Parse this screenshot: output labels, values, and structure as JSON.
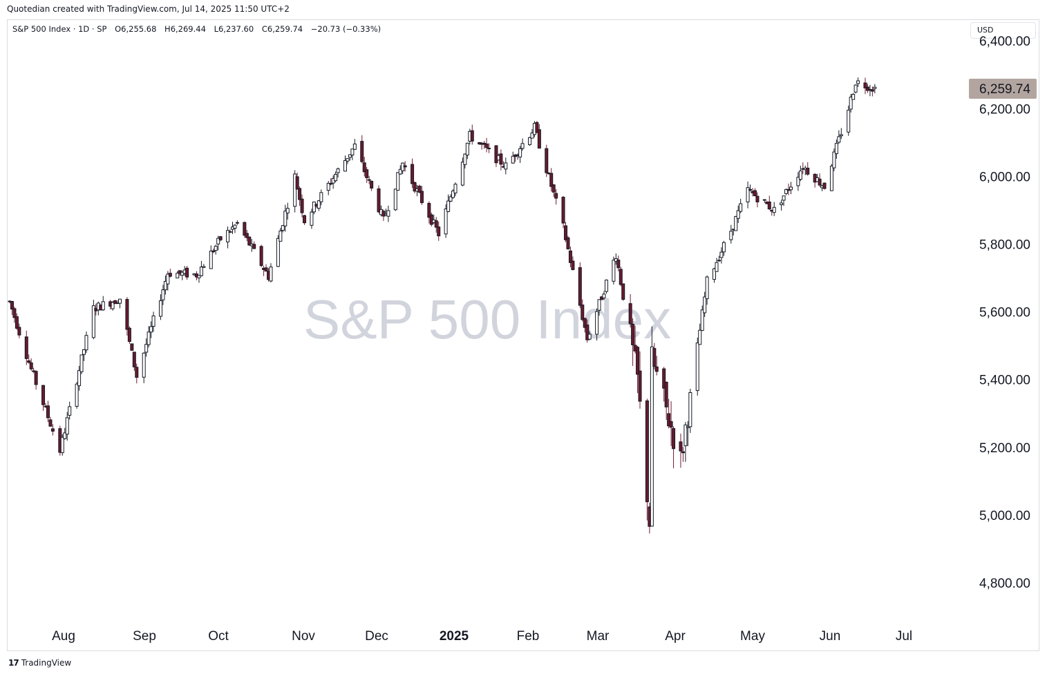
{
  "header": {
    "attribution": "Quotedian created with TradingView.com, Jul 14, 2025 11:50 UTC+2"
  },
  "legend": {
    "symbol": "S&P 500 Index · 1D · SP",
    "open": "O6,255.68",
    "high": "H6,269.44",
    "low": "L6,237.60",
    "close": "C6,259.74",
    "change": "−20.73 (−0.33%)"
  },
  "currency_button": "USD",
  "watermark": "S&P 500 Index",
  "last_price_label": "6,259.74",
  "footer": {
    "brand": "TradingView",
    "logo_glyph": "17"
  },
  "colors": {
    "up_body": "#ffffff",
    "down_body": "#6b1a2e",
    "wick_up": "#131722",
    "wick_down": "#6b1a2e",
    "last_price_bg": "#b2a59f",
    "watermark": "#d1d4dc"
  },
  "chart_data": {
    "type": "candlestick",
    "title": "S&P 500 Index",
    "interval": "1D",
    "currency": "USD",
    "y_ticks": [
      "4,800.00",
      "5,000.00",
      "5,200.00",
      "5,400.00",
      "5,600.00",
      "5,800.00",
      "6,000.00",
      "6,200.00",
      "6,400.00"
    ],
    "ylim": [
      4720,
      6440
    ],
    "x_ticks": [
      "Aug",
      "Sep",
      "Oct",
      "Nov",
      "Dec",
      "2025",
      "Feb",
      "Mar",
      "Apr",
      "May",
      "Jun",
      "Jul"
    ],
    "last_close": 6259.74,
    "series": [
      {
        "name": "S&P 500 Index",
        "keyframes": [
          [
            "2024-07-15",
            5630
          ],
          [
            "2024-07-24",
            5430
          ],
          [
            "2024-08-05",
            5190
          ],
          [
            "2024-08-19",
            5610
          ],
          [
            "2024-08-30",
            5640
          ],
          [
            "2024-09-06",
            5410
          ],
          [
            "2024-09-19",
            5715
          ],
          [
            "2024-10-01",
            5710
          ],
          [
            "2024-10-11",
            5815
          ],
          [
            "2024-10-18",
            5860
          ],
          [
            "2024-10-31",
            5705
          ],
          [
            "2024-11-11",
            6000
          ],
          [
            "2024-11-15",
            5870
          ],
          [
            "2024-12-06",
            6090
          ],
          [
            "2024-12-18",
            5870
          ],
          [
            "2024-12-26",
            6040
          ],
          [
            "2025-01-10",
            5830
          ],
          [
            "2025-01-23",
            6120
          ],
          [
            "2025-02-07",
            6030
          ],
          [
            "2025-02-19",
            6144
          ],
          [
            "2025-03-03",
            5850
          ],
          [
            "2025-03-13",
            5520
          ],
          [
            "2025-03-25",
            5770
          ],
          [
            "2025-04-03",
            5400
          ],
          [
            "2025-04-08",
            4980
          ],
          [
            "2025-04-09",
            5460
          ],
          [
            "2025-04-21",
            5160
          ],
          [
            "2025-05-02",
            5690
          ],
          [
            "2025-05-12",
            5840
          ],
          [
            "2025-05-19",
            5960
          ],
          [
            "2025-05-30",
            5900
          ],
          [
            "2025-06-11",
            6030
          ],
          [
            "2025-06-20",
            5970
          ],
          [
            "2025-06-30",
            6200
          ],
          [
            "2025-07-03",
            6280
          ],
          [
            "2025-07-11",
            6260
          ]
        ]
      }
    ]
  }
}
